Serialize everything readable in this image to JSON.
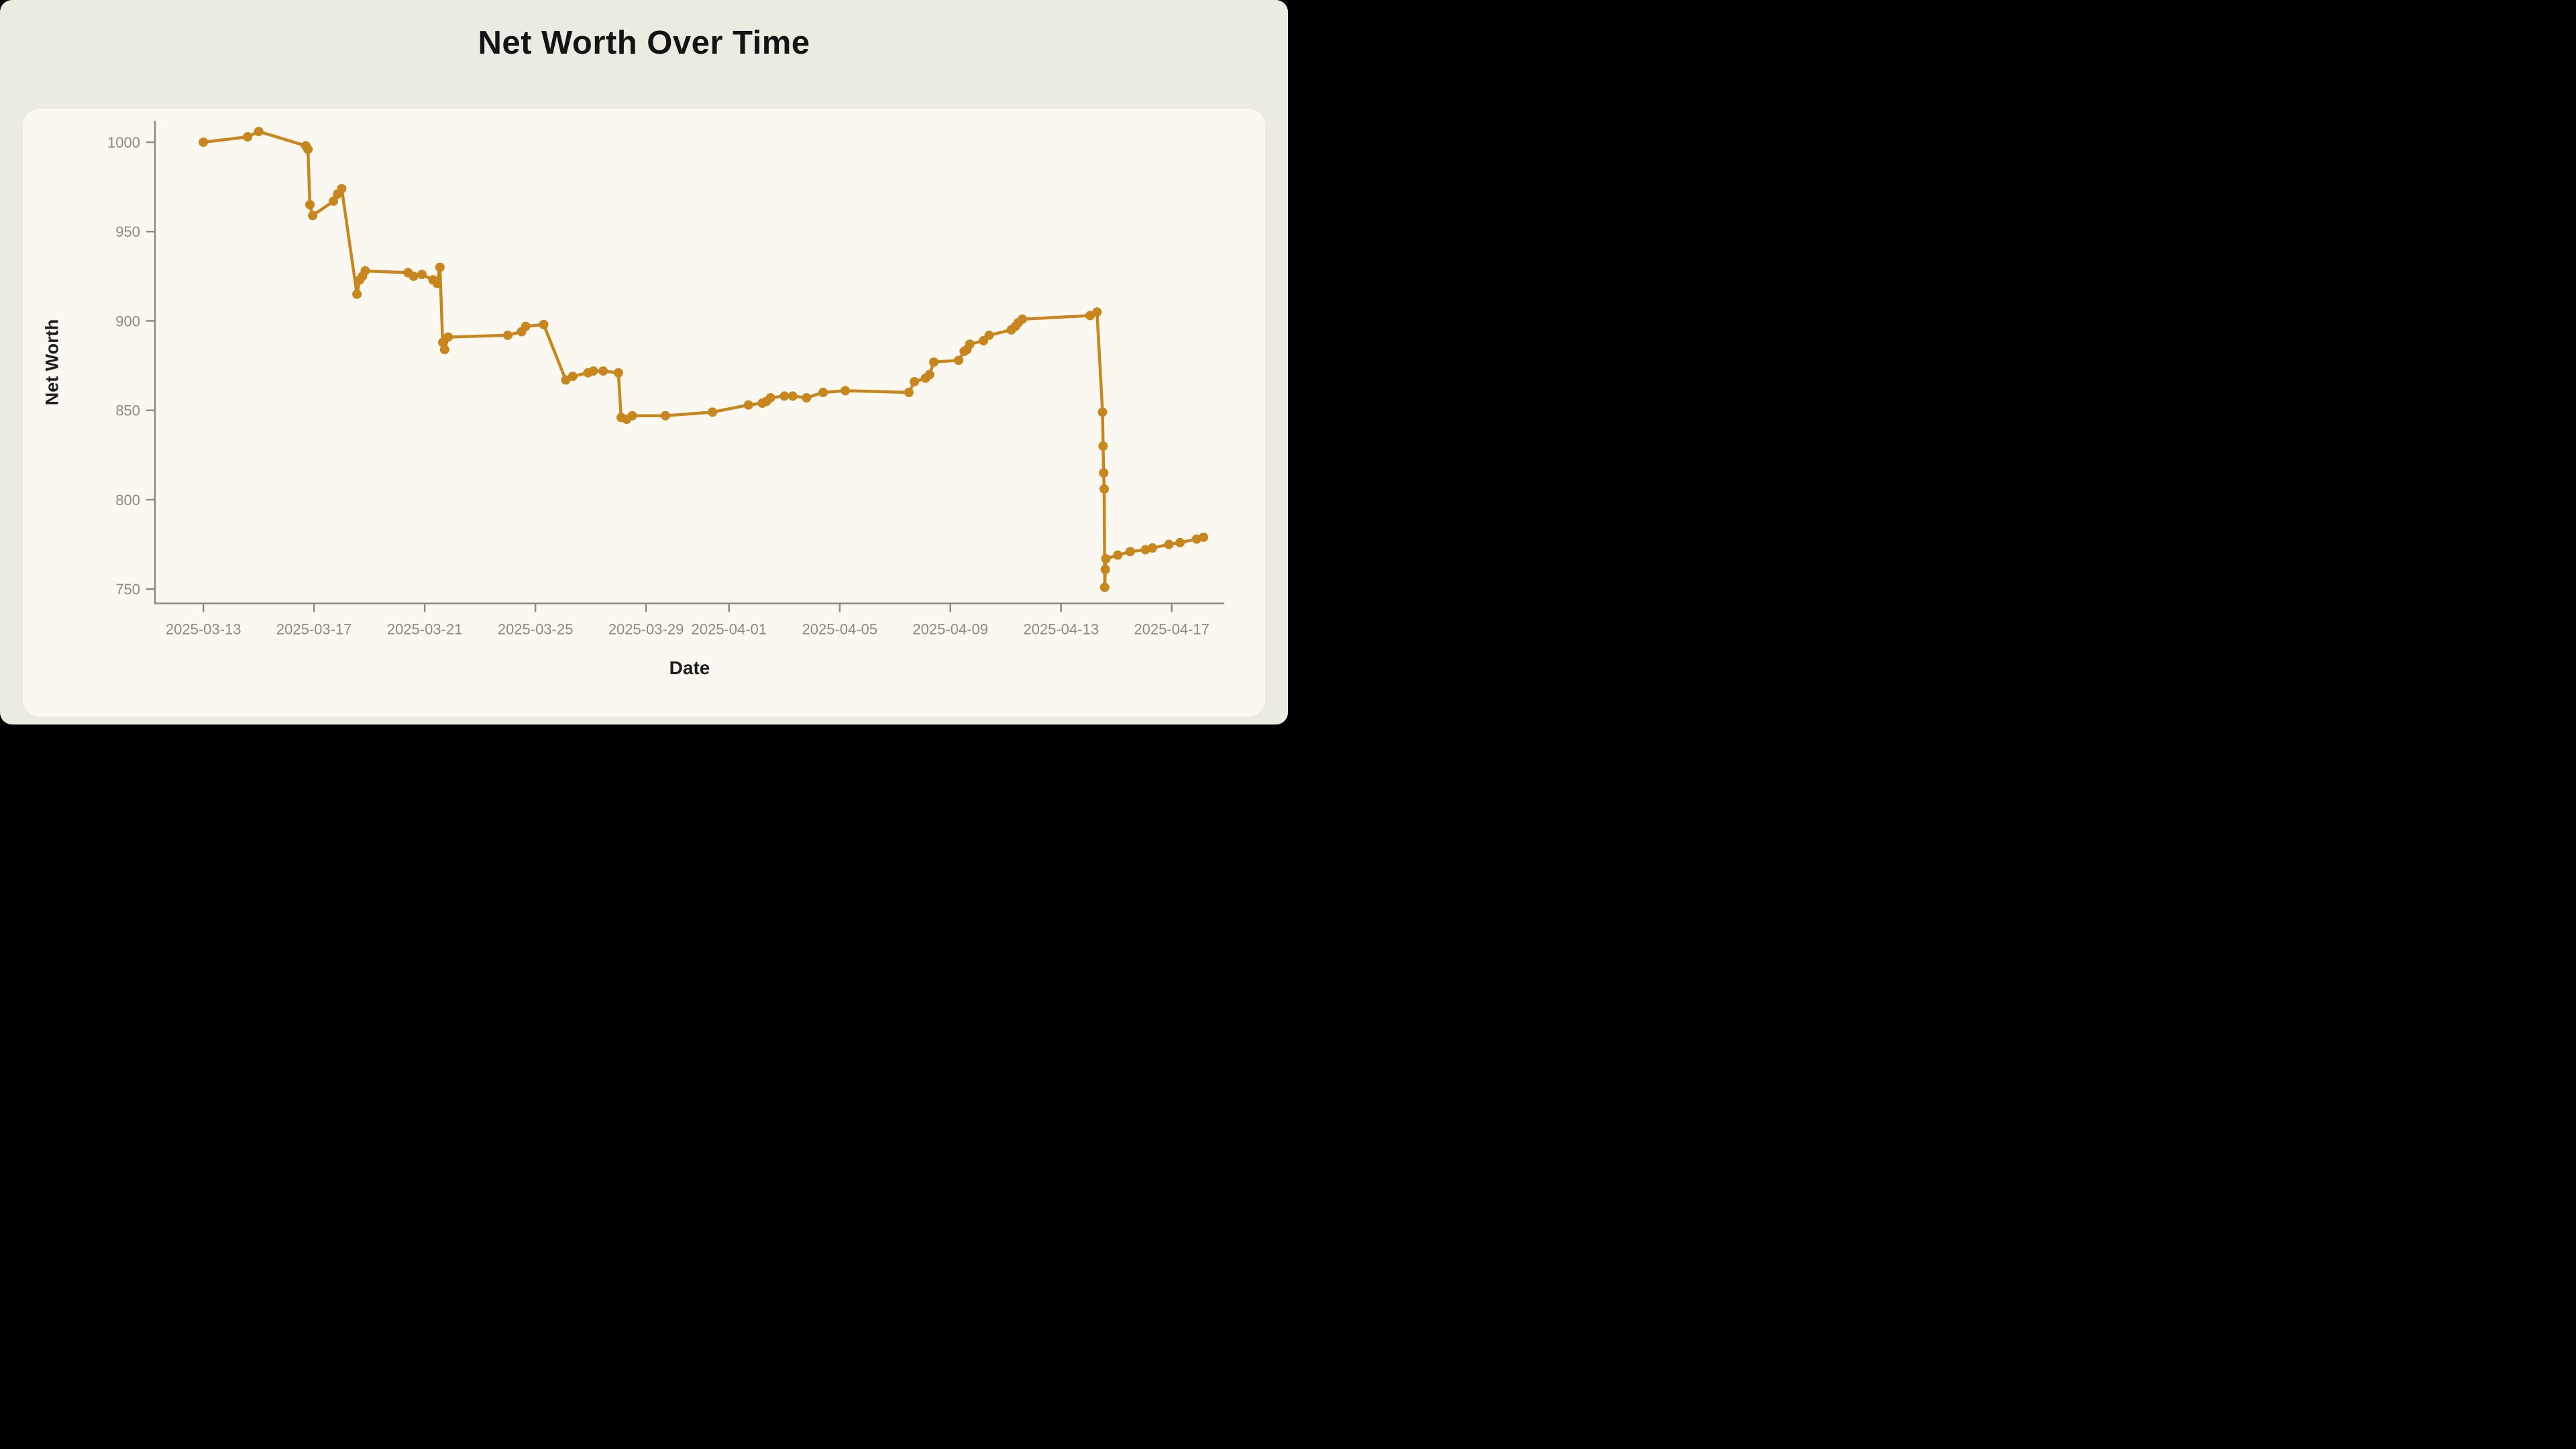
{
  "page": {
    "title": "Net Worth Over Time"
  },
  "chart_data": {
    "type": "line",
    "title": "Net Worth Over Time",
    "xlabel": "Date",
    "ylabel": "Net Worth",
    "legend": false,
    "grid": false,
    "markers": true,
    "line_color": "#C8871E",
    "axis_color": "#8C8C83",
    "tick_label_color": "#8A8A80",
    "x_axis": {
      "unit": "days since 2025-03-13",
      "range": [
        -1.75,
        36.9
      ],
      "ticks": [
        {
          "day": 0,
          "label": "2025-03-13"
        },
        {
          "day": 4,
          "label": "2025-03-17"
        },
        {
          "day": 8,
          "label": "2025-03-21"
        },
        {
          "day": 12,
          "label": "2025-03-25"
        },
        {
          "day": 16,
          "label": "2025-03-29"
        },
        {
          "day": 19,
          "label": "2025-04-01"
        },
        {
          "day": 23,
          "label": "2025-04-05"
        },
        {
          "day": 27,
          "label": "2025-04-09"
        },
        {
          "day": 31,
          "label": "2025-04-13"
        },
        {
          "day": 35,
          "label": "2025-04-17"
        }
      ]
    },
    "y_axis": {
      "range": [
        742,
        1012
      ],
      "ticks": [
        750,
        800,
        850,
        900,
        950,
        1000
      ]
    },
    "series": [
      {
        "name": "Net Worth",
        "points": [
          [
            0,
            1000
          ],
          [
            1.6,
            1003
          ],
          [
            2,
            1006
          ],
          [
            3.7,
            998
          ],
          [
            3.78,
            996
          ],
          [
            3.85,
            965
          ],
          [
            3.95,
            959
          ],
          [
            4.7,
            967
          ],
          [
            4.85,
            971
          ],
          [
            5,
            974
          ],
          [
            5.55,
            915
          ],
          [
            5.65,
            923
          ],
          [
            5.75,
            925
          ],
          [
            5.85,
            928
          ],
          [
            7.4,
            927
          ],
          [
            7.6,
            925
          ],
          [
            7.9,
            926
          ],
          [
            8.3,
            923
          ],
          [
            8.45,
            921
          ],
          [
            8.55,
            930
          ],
          [
            8.65,
            888
          ],
          [
            8.72,
            884
          ],
          [
            8.85,
            891
          ],
          [
            11,
            892
          ],
          [
            11.5,
            894
          ],
          [
            11.65,
            897
          ],
          [
            12.3,
            898
          ],
          [
            13.1,
            867
          ],
          [
            13.35,
            869
          ],
          [
            13.9,
            871
          ],
          [
            14.1,
            872
          ],
          [
            14.45,
            872
          ],
          [
            15,
            871
          ],
          [
            15.1,
            846
          ],
          [
            15.3,
            845
          ],
          [
            15.5,
            847
          ],
          [
            16.7,
            847
          ],
          [
            18.4,
            849
          ],
          [
            19.7,
            853
          ],
          [
            20.2,
            854
          ],
          [
            20.35,
            855
          ],
          [
            20.5,
            857
          ],
          [
            21,
            858
          ],
          [
            21.3,
            858
          ],
          [
            21.8,
            857
          ],
          [
            22.4,
            860
          ],
          [
            23.2,
            861
          ],
          [
            25.5,
            860
          ],
          [
            25.7,
            866
          ],
          [
            26.1,
            868
          ],
          [
            26.25,
            870
          ],
          [
            26.4,
            877
          ],
          [
            27.3,
            878
          ],
          [
            27.5,
            883
          ],
          [
            27.6,
            884
          ],
          [
            27.7,
            887
          ],
          [
            28.2,
            889
          ],
          [
            28.4,
            892
          ],
          [
            29.2,
            895
          ],
          [
            29.35,
            897
          ],
          [
            29.45,
            899
          ],
          [
            29.6,
            901
          ],
          [
            32.05,
            903
          ],
          [
            32.3,
            905
          ],
          [
            32.5,
            849
          ],
          [
            32.52,
            830
          ],
          [
            32.54,
            815
          ],
          [
            32.56,
            806
          ],
          [
            32.58,
            751
          ],
          [
            32.6,
            761
          ],
          [
            32.62,
            767
          ],
          [
            33.05,
            769
          ],
          [
            33.5,
            771
          ],
          [
            34.05,
            772
          ],
          [
            34.3,
            773
          ],
          [
            34.9,
            775
          ],
          [
            35.3,
            776
          ],
          [
            35.9,
            778
          ],
          [
            36.15,
            779
          ]
        ]
      }
    ]
  }
}
